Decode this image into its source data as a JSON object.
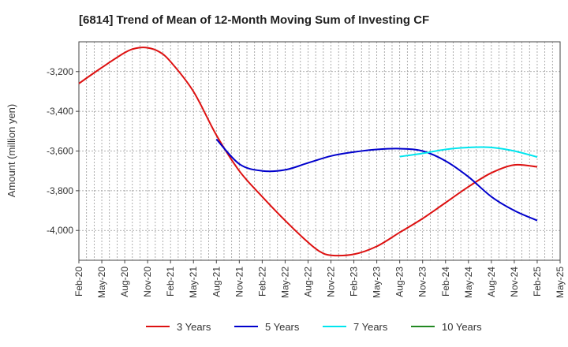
{
  "chart_data": {
    "type": "line",
    "title": "[6814]  Trend of Mean of 12-Month Moving Sum of Investing CF",
    "xlabel": "",
    "ylabel": "Amount (million yen)",
    "ylim": [
      -4150,
      -3050
    ],
    "yticks": [
      -3200,
      -3400,
      -3600,
      -3800,
      -4000
    ],
    "ytick_labels": [
      "-3,200",
      "-3,400",
      "-3,600",
      "-3,800",
      "-4,000"
    ],
    "x_range": [
      0,
      60
    ],
    "x_tick_labels": [
      "Feb-20",
      "May-20",
      "Aug-20",
      "Nov-20",
      "Feb-21",
      "May-21",
      "Aug-21",
      "Nov-21",
      "Feb-22",
      "May-22",
      "Aug-22",
      "Nov-22",
      "Feb-23",
      "May-23",
      "Aug-23",
      "Nov-23",
      "Feb-24",
      "May-24",
      "Aug-24",
      "Nov-24",
      "Feb-25",
      "May-25"
    ],
    "grid": true,
    "legend_position": "bottom",
    "series": [
      {
        "name": "3 Years",
        "color": "#dd1111",
        "x": [
          0,
          3,
          6,
          7.5,
          9,
          10.5,
          12,
          15,
          18,
          21,
          24,
          27,
          30,
          31.5,
          33,
          36,
          39,
          42,
          45,
          48,
          51,
          54,
          57,
          60
        ],
        "y": [
          -3260,
          -3180,
          -3105,
          -3082,
          -3080,
          -3100,
          -3150,
          -3300,
          -3520,
          -3700,
          -3830,
          -3950,
          -4060,
          -4105,
          -4125,
          -4120,
          -4080,
          -4010,
          -3940,
          -3860,
          -3780,
          -3710,
          -3670,
          -3680
        ]
      },
      {
        "name": "5 Years",
        "color": "#0000cc",
        "x": [
          18,
          21,
          24,
          27,
          30,
          33,
          36,
          39,
          42,
          45,
          48,
          51,
          54,
          57,
          60
        ],
        "y": [
          -3540,
          -3665,
          -3700,
          -3695,
          -3660,
          -3625,
          -3605,
          -3592,
          -3588,
          -3600,
          -3650,
          -3730,
          -3830,
          -3900,
          -3950
        ]
      },
      {
        "name": "7 Years",
        "color": "#00e5ee",
        "x": [
          42,
          45,
          48,
          51,
          54,
          57,
          60
        ],
        "y": [
          -3628,
          -3612,
          -3592,
          -3582,
          -3582,
          -3600,
          -3630
        ]
      },
      {
        "name": "10 Years",
        "color": "#228822",
        "x": [],
        "y": []
      }
    ]
  }
}
